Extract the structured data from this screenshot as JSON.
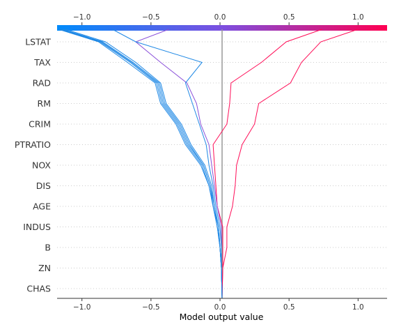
{
  "chart_data": {
    "type": "line",
    "title": "",
    "xlabel": "Model output value",
    "ylabel": "",
    "xlim": [
      -1.18,
      1.21
    ],
    "base_value": 0.015,
    "x_ticks": [
      -1.0,
      -0.5,
      0.0,
      0.5,
      1.0
    ],
    "x_tick_labels": [
      "−1.0",
      "−0.5",
      "0.0",
      "0.5",
      "1.0"
    ],
    "features": [
      "LSTAT",
      "TAX",
      "RAD",
      "RM",
      "CRIM",
      "PTRATIO",
      "NOX",
      "DIS",
      "AGE",
      "INDUS",
      "B",
      "ZN",
      "CHAS"
    ],
    "grid": "dotted horizontal lines between features",
    "colorbar": {
      "position": "top",
      "colors": [
        "#008bfb",
        "#7c4fe0",
        "#ff0052"
      ],
      "tick_labels": [
        "−1.0",
        "−0.5",
        "0.0",
        "0.5",
        "1.0"
      ]
    },
    "series": [
      {
        "color": "#ff0d57",
        "values": [
          1.0,
          0.73,
          0.59,
          0.51,
          0.28,
          0.25,
          0.16,
          0.12,
          0.11,
          0.09,
          0.05,
          0.05,
          0.02,
          0.015
        ]
      },
      {
        "color": "#ff0d57",
        "values": [
          0.74,
          0.48,
          0.3,
          0.08,
          0.07,
          0.05,
          -0.05,
          -0.04,
          -0.03,
          -0.02,
          0.02,
          0.02,
          0.02,
          0.015
        ]
      },
      {
        "color": "#8a4fd9",
        "values": [
          -0.37,
          -0.61,
          -0.43,
          -0.24,
          -0.17,
          -0.14,
          -0.08,
          -0.06,
          -0.04,
          -0.02,
          0.01,
          0.01,
          0.01,
          0.015
        ]
      },
      {
        "color": "#1e88e5",
        "values": [
          -0.78,
          -0.61,
          -0.13,
          -0.25,
          -0.2,
          -0.15,
          -0.1,
          -0.08,
          -0.05,
          -0.03,
          0.0,
          0.01,
          0.01,
          0.015
        ]
      },
      {
        "color": "#1e88e5",
        "values": [
          -1.12,
          -0.83,
          -0.61,
          -0.43,
          -0.39,
          -0.28,
          -0.21,
          -0.11,
          -0.06,
          -0.04,
          -0.01,
          0.0,
          0.01,
          0.015
        ]
      },
      {
        "color": "#1e88e5",
        "values": [
          -1.14,
          -0.85,
          -0.63,
          -0.44,
          -0.4,
          -0.29,
          -0.22,
          -0.12,
          -0.07,
          -0.04,
          -0.01,
          0.0,
          0.01,
          0.015
        ]
      },
      {
        "color": "#1e88e5",
        "values": [
          -1.15,
          -0.86,
          -0.64,
          -0.45,
          -0.41,
          -0.3,
          -0.23,
          -0.12,
          -0.07,
          -0.05,
          -0.01,
          0.0,
          0.01,
          0.015
        ]
      },
      {
        "color": "#1e88e5",
        "values": [
          -1.16,
          -0.87,
          -0.65,
          -0.46,
          -0.42,
          -0.31,
          -0.24,
          -0.13,
          -0.08,
          -0.05,
          -0.02,
          0.0,
          0.01,
          0.015
        ]
      },
      {
        "color": "#1e88e5",
        "values": [
          -1.17,
          -0.88,
          -0.67,
          -0.47,
          -0.43,
          -0.32,
          -0.25,
          -0.14,
          -0.08,
          -0.05,
          -0.02,
          0.0,
          0.01,
          0.015
        ]
      }
    ]
  }
}
